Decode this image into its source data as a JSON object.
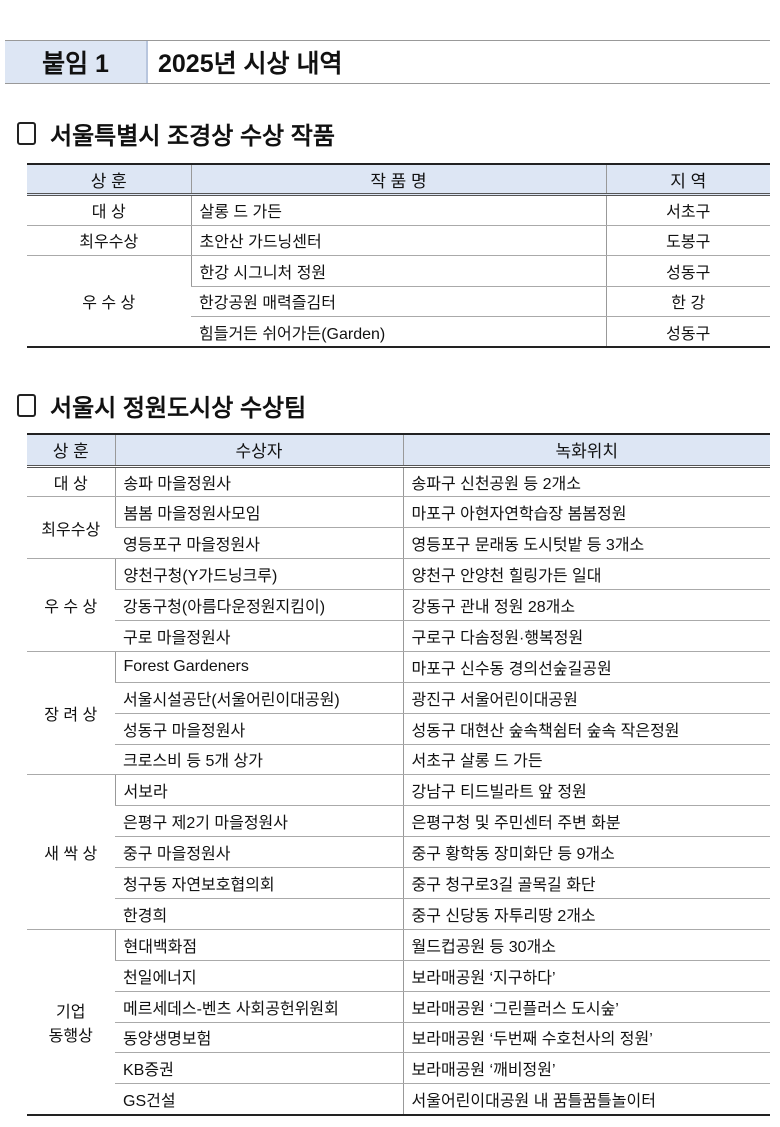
{
  "header": {
    "label": "붙임 1",
    "title": "2025년 시상 내역"
  },
  "section1": {
    "title": "서울특별시 조경상 수상 작품",
    "columns": [
      "상 훈",
      "작 품 명",
      "지 역"
    ],
    "groups": [
      {
        "award": "대 상",
        "rows": [
          {
            "work": "살롱 드 가든",
            "region": "서초구"
          }
        ]
      },
      {
        "award": "최우수상",
        "rows": [
          {
            "work": "초안산 가드닝센터",
            "region": "도봉구"
          }
        ]
      },
      {
        "award": "우 수 상",
        "rows": [
          {
            "work": "한강 시그니처 정원",
            "region": "성동구"
          },
          {
            "work": "한강공원 매력즐김터",
            "region": "한 강"
          },
          {
            "work": "힘들거든 쉬어가든(Garden)",
            "region": "성동구"
          }
        ]
      }
    ]
  },
  "section2": {
    "title": "서울시 정원도시상 수상팀",
    "columns": [
      "상 훈",
      "수상자",
      "녹화위치"
    ],
    "groups": [
      {
        "award": "대 상",
        "rows": [
          {
            "winner": "송파 마을정원사",
            "location": "송파구 신천공원 등 2개소"
          }
        ]
      },
      {
        "award": "최우수상",
        "rows": [
          {
            "winner": "봄봄 마을정원사모임",
            "location": "마포구 아현자연학습장 봄봄정원"
          },
          {
            "winner": "영등포구 마을정원사",
            "location": "영등포구 문래동 도시텃밭 등 3개소"
          }
        ]
      },
      {
        "award": "우 수 상",
        "rows": [
          {
            "winner": "양천구청(Y가드닝크루)",
            "location": "양천구 안양천 힐링가든 일대"
          },
          {
            "winner": "강동구청(아름다운정원지킴이)",
            "location": "강동구 관내 정원 28개소"
          },
          {
            "winner": "구로 마을정원사",
            "location": "구로구 다솜정원·행복정원"
          }
        ]
      },
      {
        "award": "장 려 상",
        "rows": [
          {
            "winner": "Forest Gardeners",
            "location": "마포구 신수동 경의선숲길공원"
          },
          {
            "winner": "서울시설공단(서울어린이대공원)",
            "location": "광진구 서울어린이대공원"
          },
          {
            "winner": "성동구 마을정원사",
            "location": "성동구 대현산 숲속책쉼터 숲속 작은정원"
          },
          {
            "winner": "크로스비 등 5개 상가",
            "location": "서초구 살롱 드 가든"
          }
        ]
      },
      {
        "award": "새 싹 상",
        "rows": [
          {
            "winner": "서보라",
            "location": "강남구 티드빌라트 앞 정원"
          },
          {
            "winner": "은평구 제2기 마을정원사",
            "location": "은평구청 및 주민센터 주변 화분"
          },
          {
            "winner": "중구 마을정원사",
            "location": "중구 황학동 장미화단 등 9개소"
          },
          {
            "winner": "청구동 자연보호협의회",
            "location": "중구 청구로3길 골목길 화단"
          },
          {
            "winner": "한경희",
            "location": "중구 신당동 자투리땅 2개소"
          }
        ]
      },
      {
        "award": "기업 동행상",
        "award_lines": [
          "기업",
          "동행상"
        ],
        "rows": [
          {
            "winner": "현대백화점",
            "location": "월드컵공원 등 30개소"
          },
          {
            "winner": "천일에너지",
            "location": "보라매공원 ‘지구하다’"
          },
          {
            "winner": "메르세데스-벤츠 사회공헌위원회",
            "location": "보라매공원 ‘그린플러스 도시숲’"
          },
          {
            "winner": "동양생명보험",
            "location": "보라매공원 ‘두번째 수호천사의 정원’"
          },
          {
            "winner": "KB증권",
            "location": "보라매공원 ‘깨비정원’"
          },
          {
            "winner": "GS건설",
            "location": "서울어린이대공원 내 꿈틀꿈틀놀이터"
          }
        ]
      }
    ]
  }
}
